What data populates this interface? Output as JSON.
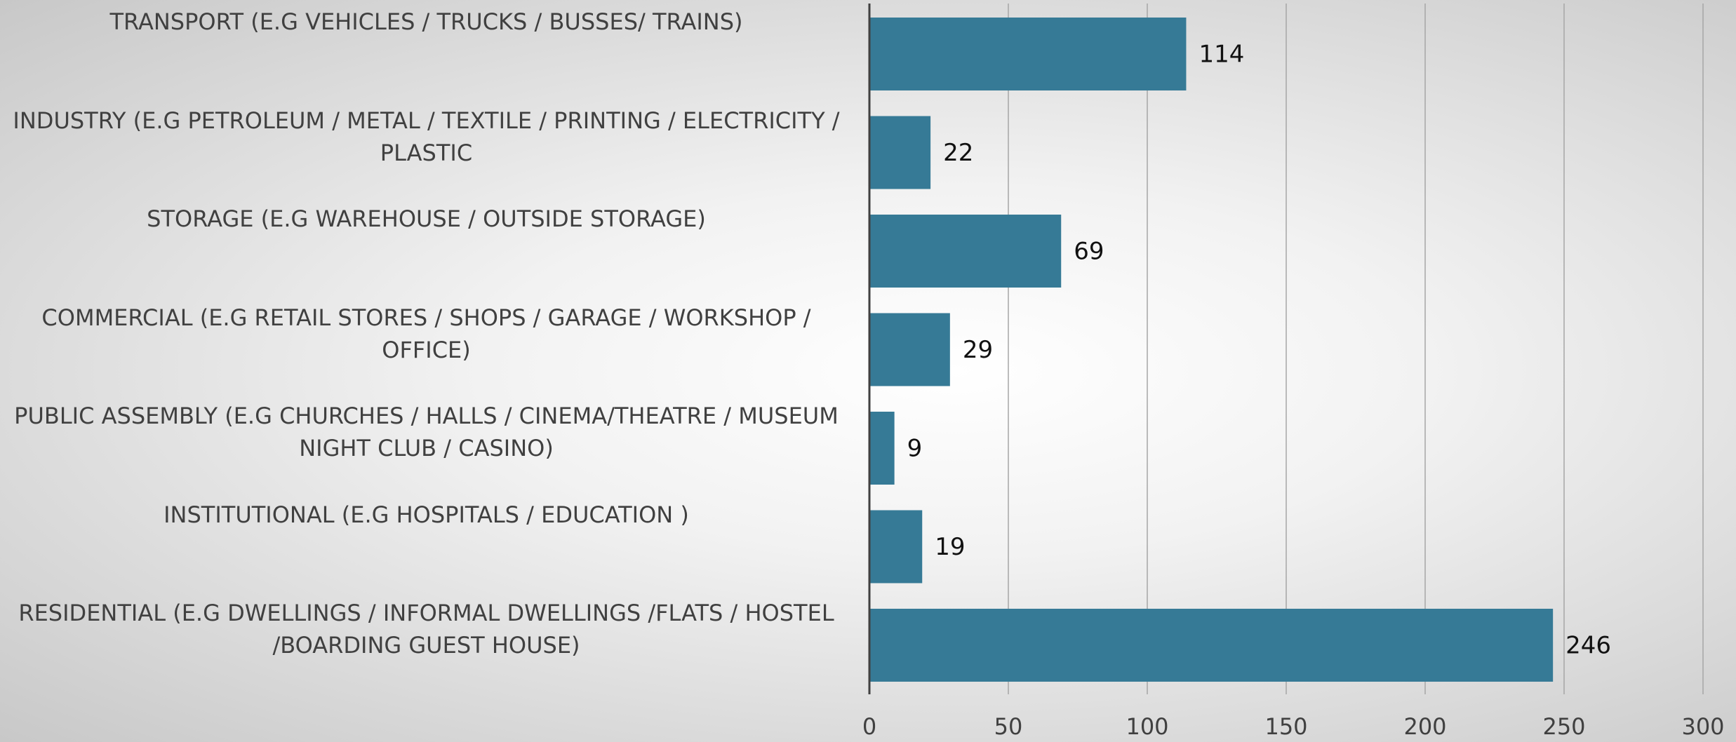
{
  "chart_data": {
    "type": "barh",
    "categories": [
      "TRANSPORT (E.G VEHICLES / TRUCKS / BUSSES/ TRAINS)",
      "INDUSTRY (E.G PETROLEUM / METAL / TEXTILE / PRINTING / ELECTRICITY / PLASTIC",
      "STORAGE (E.G WAREHOUSE / OUTSIDE STORAGE)",
      "COMMERCIAL (E.G RETAIL STORES / SHOPS / GARAGE / WORKSHOP / OFFICE)",
      "PUBLIC ASSEMBLY (E.G CHURCHES / HALLS / CINEMA/THEATRE / MUSEUM NIGHT CLUB / CASINO)",
      "INSTITUTIONAL (E.G HOSPITALS / EDUCATION )",
      "RESIDENTIAL (E.G  DWELLINGS / INFORMAL DWELLINGS /FLATS / HOSTEL /BOARDING GUEST HOUSE)"
    ],
    "values": [
      114,
      22,
      69,
      29,
      9,
      19,
      246
    ],
    "color": "#367a96",
    "xlim": [
      0,
      300
    ],
    "xticks": [
      0,
      50,
      100,
      150,
      200,
      250,
      300
    ],
    "grid": true
  }
}
